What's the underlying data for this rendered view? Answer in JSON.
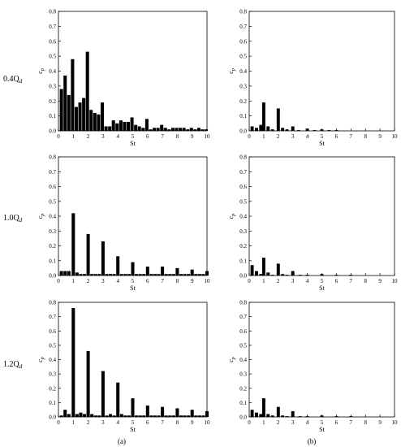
{
  "figure": {
    "row_labels": [
      {
        "base": "0.4Q",
        "sub": "d"
      },
      {
        "base": "1.0Q",
        "sub": "d"
      },
      {
        "base": "1.2Q",
        "sub": "d"
      }
    ],
    "column_labels": [
      "(a)",
      "(b)"
    ]
  },
  "chart_data": [
    {
      "type": "bar",
      "row": 0,
      "col": 0,
      "xlabel": "St",
      "ylabel": "c",
      "ylabel_sub": "p",
      "xlim": [
        0,
        10
      ],
      "ylim": [
        0,
        0.8
      ],
      "xticks": [
        "0",
        "1",
        "2",
        "3",
        "4",
        "5",
        "6",
        "7",
        "8",
        "9",
        "10"
      ],
      "yticks": [
        "0.0",
        "0.1",
        "0.2",
        "0.3",
        "0.4",
        "0.5",
        "0.6",
        "0.7",
        "0.8"
      ],
      "x": [
        0.2,
        0.45,
        0.7,
        0.95,
        1.2,
        1.45,
        1.7,
        1.95,
        2.2,
        2.45,
        2.7,
        2.95,
        3.2,
        3.45,
        3.7,
        3.95,
        4.2,
        4.45,
        4.7,
        4.95,
        5.2,
        5.45,
        5.7,
        5.95,
        6.2,
        6.45,
        6.7,
        6.95,
        7.2,
        7.45,
        7.7,
        7.95,
        8.2,
        8.45,
        8.7,
        8.95,
        9.2,
        9.45,
        9.7,
        9.95
      ],
      "values": [
        0.28,
        0.37,
        0.24,
        0.48,
        0.16,
        0.19,
        0.22,
        0.53,
        0.14,
        0.12,
        0.11,
        0.19,
        0.03,
        0.03,
        0.07,
        0.05,
        0.07,
        0.06,
        0.06,
        0.09,
        0.04,
        0.03,
        0.02,
        0.08,
        0.01,
        0.02,
        0.02,
        0.04,
        0.02,
        0.01,
        0.02,
        0.02,
        0.02,
        0.02,
        0.01,
        0.02,
        0.01,
        0.02,
        0.01,
        0.01
      ]
    },
    {
      "type": "bar",
      "row": 0,
      "col": 1,
      "xlabel": "St",
      "ylabel": "c",
      "ylabel_sub": "p",
      "xlim": [
        0,
        10
      ],
      "ylim": [
        0,
        0.8
      ],
      "xticks": [
        "0",
        "1",
        "2",
        "3",
        "4",
        "5",
        "6",
        "7",
        "8",
        "9",
        "10"
      ],
      "yticks": [
        "0.0",
        "0.1",
        "0.2",
        "0.3",
        "0.4",
        "0.5",
        "0.6",
        "0.7",
        "0.8"
      ],
      "x": [
        0.2,
        0.5,
        0.8,
        1.0,
        1.3,
        1.6,
        2.0,
        2.3,
        2.6,
        3.0,
        3.4,
        4.0,
        4.5,
        5.0,
        5.5,
        6.0
      ],
      "values": [
        0.03,
        0.02,
        0.04,
        0.19,
        0.03,
        0.01,
        0.15,
        0.02,
        0.01,
        0.03,
        0.005,
        0.015,
        0.005,
        0.01,
        0.005,
        0.005
      ]
    },
    {
      "type": "bar",
      "row": 1,
      "col": 0,
      "xlabel": "St",
      "ylabel": "c",
      "ylabel_sub": "p",
      "xlim": [
        0,
        10
      ],
      "ylim": [
        0,
        0.8
      ],
      "xticks": [
        "0",
        "1",
        "2",
        "3",
        "4",
        "5",
        "6",
        "7",
        "8",
        "9",
        "10"
      ],
      "yticks": [
        "0.0",
        "0.1",
        "0.2",
        "0.3",
        "0.4",
        "0.5",
        "0.6",
        "0.7",
        "0.8"
      ],
      "x": [
        0.2,
        0.45,
        0.7,
        1.0,
        1.25,
        1.5,
        1.75,
        2.0,
        2.25,
        2.5,
        2.75,
        3.0,
        3.25,
        3.5,
        3.75,
        4.0,
        4.25,
        4.5,
        4.75,
        5.0,
        5.25,
        5.5,
        5.75,
        6.0,
        6.25,
        6.5,
        6.75,
        7.0,
        7.25,
        7.5,
        7.75,
        8.0,
        8.25,
        8.5,
        8.75,
        9.0,
        9.25,
        9.5,
        9.75,
        10.0
      ],
      "values": [
        0.03,
        0.03,
        0.03,
        0.42,
        0.02,
        0.01,
        0.01,
        0.28,
        0.01,
        0.01,
        0.01,
        0.23,
        0.01,
        0.01,
        0.01,
        0.13,
        0.01,
        0.01,
        0.01,
        0.09,
        0.01,
        0.01,
        0.01,
        0.06,
        0.01,
        0.01,
        0.01,
        0.06,
        0.01,
        0.01,
        0.01,
        0.05,
        0.01,
        0.01,
        0.01,
        0.04,
        0.01,
        0.01,
        0.01,
        0.03
      ]
    },
    {
      "type": "bar",
      "row": 1,
      "col": 1,
      "xlabel": "St",
      "ylabel": "c",
      "ylabel_sub": "p",
      "xlim": [
        0,
        10
      ],
      "ylim": [
        0,
        0.8
      ],
      "xticks": [
        "0",
        "1",
        "2",
        "3",
        "4",
        "5",
        "6",
        "7",
        "8",
        "9",
        "10"
      ],
      "yticks": [
        "0.0",
        "0.1",
        "0.2",
        "0.3",
        "0.4",
        "0.5",
        "0.6",
        "0.7",
        "0.8"
      ],
      "x": [
        0.2,
        0.5,
        0.8,
        1.0,
        1.3,
        1.6,
        2.0,
        2.3,
        2.6,
        3.0,
        3.5,
        4.0,
        5.0,
        6.0,
        7.0
      ],
      "values": [
        0.07,
        0.03,
        0.01,
        0.12,
        0.02,
        0.005,
        0.08,
        0.01,
        0.005,
        0.03,
        0.005,
        0.005,
        0.01,
        0.005,
        0.005
      ]
    },
    {
      "type": "bar",
      "row": 2,
      "col": 0,
      "xlabel": "St",
      "ylabel": "c",
      "ylabel_sub": "p",
      "xlim": [
        0,
        10
      ],
      "ylim": [
        0,
        0.8
      ],
      "xticks": [
        "0",
        "1",
        "2",
        "3",
        "4",
        "5",
        "6",
        "7",
        "8",
        "9",
        "10"
      ],
      "yticks": [
        "0.0",
        "0.1",
        "0.2",
        "0.3",
        "0.4",
        "0.5",
        "0.6",
        "0.7",
        "0.8"
      ],
      "x": [
        0.2,
        0.45,
        0.7,
        1.0,
        1.25,
        1.5,
        1.75,
        2.0,
        2.25,
        2.5,
        2.75,
        3.0,
        3.25,
        3.5,
        3.75,
        4.0,
        4.25,
        4.5,
        4.75,
        5.0,
        5.25,
        5.5,
        5.75,
        6.0,
        6.25,
        6.5,
        6.75,
        7.0,
        7.25,
        7.5,
        7.75,
        8.0,
        8.25,
        8.5,
        8.75,
        9.0,
        9.25,
        9.5,
        9.75,
        10.0
      ],
      "values": [
        0.01,
        0.05,
        0.02,
        0.76,
        0.02,
        0.03,
        0.02,
        0.46,
        0.02,
        0.01,
        0.01,
        0.32,
        0.01,
        0.02,
        0.01,
        0.24,
        0.02,
        0.01,
        0.01,
        0.13,
        0.01,
        0.01,
        0.01,
        0.08,
        0.01,
        0.01,
        0.01,
        0.07,
        0.01,
        0.01,
        0.01,
        0.06,
        0.01,
        0.01,
        0.01,
        0.05,
        0.01,
        0.01,
        0.01,
        0.04
      ]
    },
    {
      "type": "bar",
      "row": 2,
      "col": 1,
      "xlabel": "St",
      "ylabel": "c",
      "ylabel_sub": "p",
      "xlim": [
        0,
        10
      ],
      "ylim": [
        0,
        0.8
      ],
      "xticks": [
        "0",
        "1",
        "2",
        "3",
        "4",
        "5",
        "6",
        "7",
        "8",
        "9",
        "10"
      ],
      "yticks": [
        "0.0",
        "0.1",
        "0.2",
        "0.3",
        "0.4",
        "0.5",
        "0.6",
        "0.7",
        "0.8"
      ],
      "x": [
        0.2,
        0.5,
        0.8,
        1.0,
        1.3,
        1.6,
        2.0,
        2.3,
        2.6,
        3.0,
        3.5,
        4.0,
        5.0,
        6.0,
        7.0
      ],
      "values": [
        0.05,
        0.03,
        0.02,
        0.13,
        0.02,
        0.01,
        0.07,
        0.01,
        0.005,
        0.04,
        0.005,
        0.005,
        0.01,
        0.005,
        0.005
      ]
    }
  ]
}
